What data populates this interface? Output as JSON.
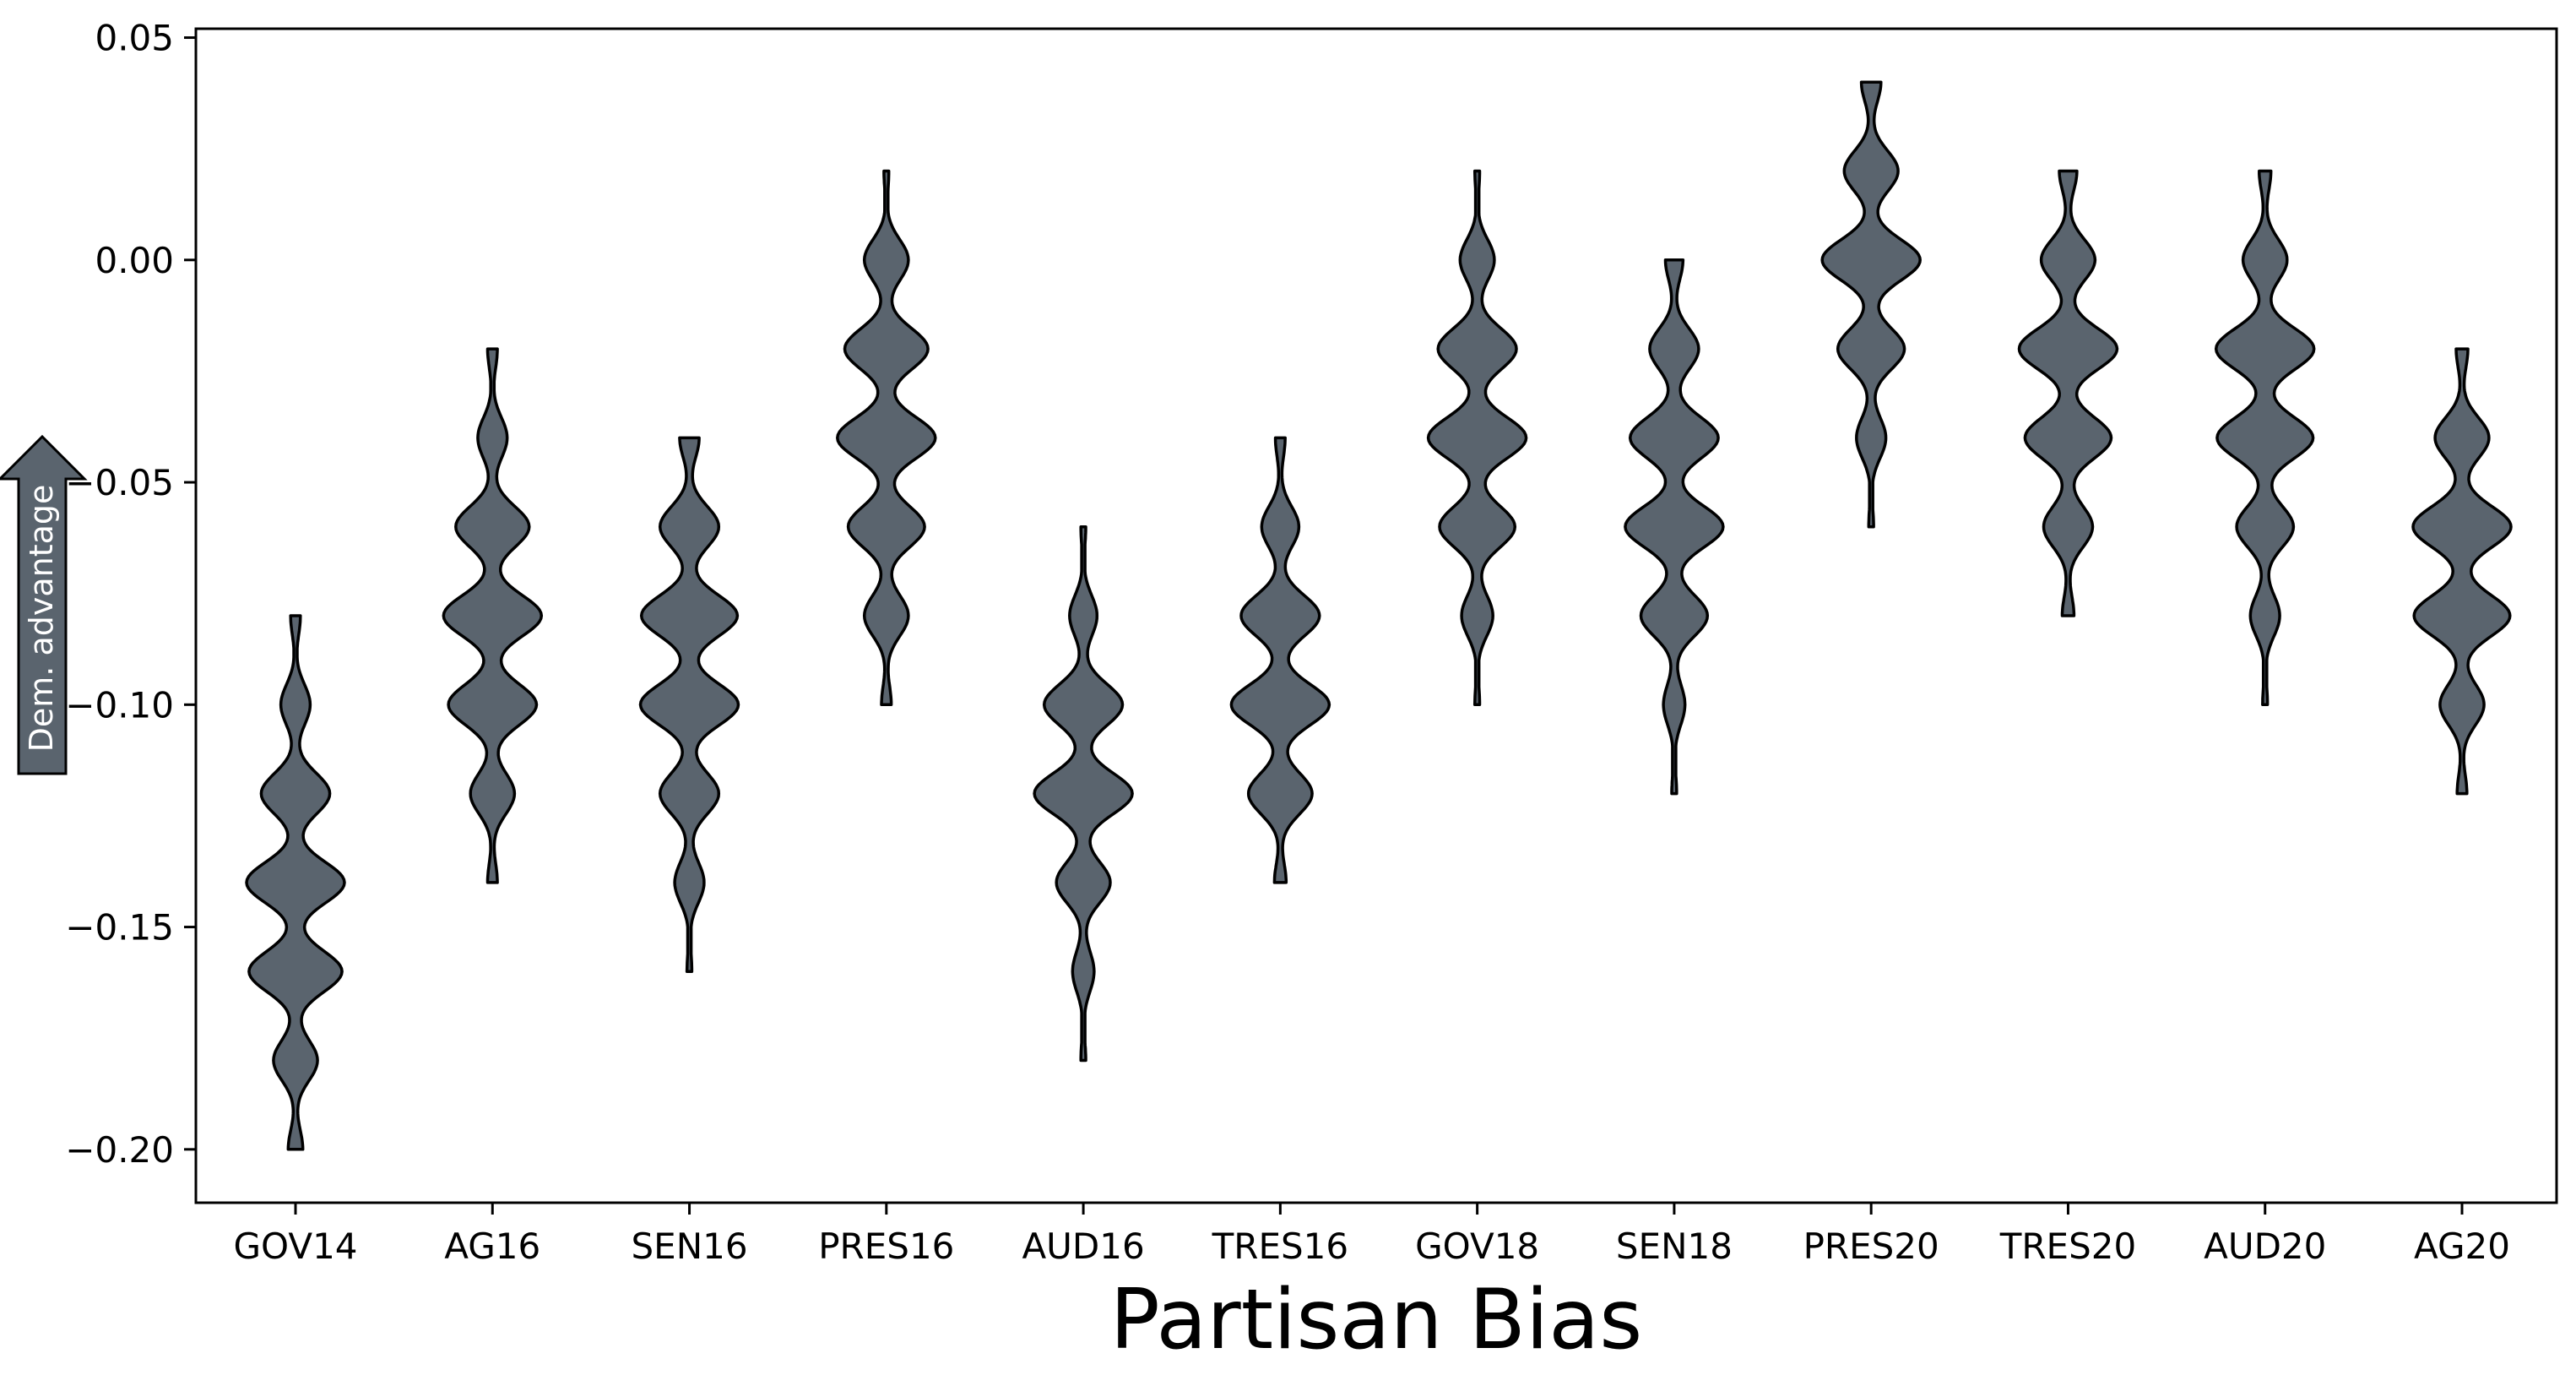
{
  "chart_data": {
    "type": "violin",
    "xlabel": "Partisan Bias",
    "ylabel": "",
    "ylim": [
      -0.212,
      0.052
    ],
    "yticks": [
      0.05,
      0.0,
      -0.05,
      -0.1,
      -0.15,
      -0.2
    ],
    "ytick_labels": [
      "0.05",
      "0.00",
      "−0.05",
      "−0.10",
      "−0.15",
      "−0.20"
    ],
    "violin_color": "#5a646e",
    "edge_color": "#000000",
    "annotation": {
      "text": "Dem. advantage",
      "direction": "up",
      "color": "#5a646e"
    },
    "categories": [
      "GOV14",
      "AG16",
      "SEN16",
      "PRES16",
      "AUD16",
      "TRES16",
      "GOV18",
      "SEN18",
      "PRES20",
      "TRES20",
      "AUD20",
      "AG20"
    ],
    "series": [
      {
        "category": "GOV14",
        "min": -0.2,
        "max": -0.08,
        "modes": [
          {
            "value": -0.08,
            "weight": 0.1
          },
          {
            "value": -0.1,
            "weight": 0.3
          },
          {
            "value": -0.12,
            "weight": 0.7
          },
          {
            "value": -0.14,
            "weight": 1.0
          },
          {
            "value": -0.16,
            "weight": 0.95
          },
          {
            "value": -0.18,
            "weight": 0.45
          },
          {
            "value": -0.2,
            "weight": 0.15
          }
        ]
      },
      {
        "category": "AG16",
        "min": -0.14,
        "max": -0.02,
        "modes": [
          {
            "value": -0.02,
            "weight": 0.1
          },
          {
            "value": -0.04,
            "weight": 0.3
          },
          {
            "value": -0.06,
            "weight": 0.75
          },
          {
            "value": -0.08,
            "weight": 1.0
          },
          {
            "value": -0.1,
            "weight": 0.9
          },
          {
            "value": -0.12,
            "weight": 0.45
          },
          {
            "value": -0.14,
            "weight": 0.1
          }
        ]
      },
      {
        "category": "SEN16",
        "min": -0.16,
        "max": -0.04,
        "modes": [
          {
            "value": -0.04,
            "weight": 0.2
          },
          {
            "value": -0.06,
            "weight": 0.6
          },
          {
            "value": -0.08,
            "weight": 0.98
          },
          {
            "value": -0.1,
            "weight": 1.0
          },
          {
            "value": -0.12,
            "weight": 0.6
          },
          {
            "value": -0.14,
            "weight": 0.3
          },
          {
            "value": -0.16,
            "weight": 0.05
          }
        ]
      },
      {
        "category": "PRES16",
        "min": -0.1,
        "max": 0.02,
        "modes": [
          {
            "value": 0.02,
            "weight": 0.05
          },
          {
            "value": 0.0,
            "weight": 0.45
          },
          {
            "value": -0.02,
            "weight": 0.85
          },
          {
            "value": -0.04,
            "weight": 1.0
          },
          {
            "value": -0.06,
            "weight": 0.78
          },
          {
            "value": -0.08,
            "weight": 0.45
          },
          {
            "value": -0.1,
            "weight": 0.1
          }
        ]
      },
      {
        "category": "AUD16",
        "min": -0.18,
        "max": -0.06,
        "modes": [
          {
            "value": -0.06,
            "weight": 0.05
          },
          {
            "value": -0.08,
            "weight": 0.28
          },
          {
            "value": -0.1,
            "weight": 0.8
          },
          {
            "value": -0.12,
            "weight": 1.0
          },
          {
            "value": -0.14,
            "weight": 0.55
          },
          {
            "value": -0.16,
            "weight": 0.22
          },
          {
            "value": -0.18,
            "weight": 0.05
          }
        ]
      },
      {
        "category": "TRES16",
        "min": -0.14,
        "max": -0.04,
        "modes": [
          {
            "value": -0.04,
            "weight": 0.1
          },
          {
            "value": -0.06,
            "weight": 0.38
          },
          {
            "value": -0.08,
            "weight": 0.8
          },
          {
            "value": -0.1,
            "weight": 1.0
          },
          {
            "value": -0.12,
            "weight": 0.65
          },
          {
            "value": -0.14,
            "weight": 0.12
          }
        ]
      },
      {
        "category": "GOV18",
        "min": -0.1,
        "max": 0.02,
        "modes": [
          {
            "value": 0.02,
            "weight": 0.05
          },
          {
            "value": 0.0,
            "weight": 0.35
          },
          {
            "value": -0.02,
            "weight": 0.8
          },
          {
            "value": -0.04,
            "weight": 1.0
          },
          {
            "value": -0.06,
            "weight": 0.77
          },
          {
            "value": -0.08,
            "weight": 0.32
          },
          {
            "value": -0.1,
            "weight": 0.05
          }
        ]
      },
      {
        "category": "SEN18",
        "min": -0.12,
        "max": 0.0,
        "modes": [
          {
            "value": 0.0,
            "weight": 0.18
          },
          {
            "value": -0.02,
            "weight": 0.5
          },
          {
            "value": -0.04,
            "weight": 0.9
          },
          {
            "value": -0.06,
            "weight": 1.0
          },
          {
            "value": -0.08,
            "weight": 0.68
          },
          {
            "value": -0.1,
            "weight": 0.22
          },
          {
            "value": -0.12,
            "weight": 0.05
          }
        ]
      },
      {
        "category": "PRES20",
        "min": -0.06,
        "max": 0.04,
        "modes": [
          {
            "value": 0.04,
            "weight": 0.2
          },
          {
            "value": 0.02,
            "weight": 0.55
          },
          {
            "value": 0.0,
            "weight": 1.0
          },
          {
            "value": -0.02,
            "weight": 0.68
          },
          {
            "value": -0.04,
            "weight": 0.3
          },
          {
            "value": -0.06,
            "weight": 0.05
          }
        ]
      },
      {
        "category": "TRES20",
        "min": -0.08,
        "max": 0.02,
        "modes": [
          {
            "value": 0.02,
            "weight": 0.18
          },
          {
            "value": 0.0,
            "weight": 0.55
          },
          {
            "value": -0.02,
            "weight": 1.0
          },
          {
            "value": -0.04,
            "weight": 0.88
          },
          {
            "value": -0.06,
            "weight": 0.5
          },
          {
            "value": -0.08,
            "weight": 0.12
          }
        ]
      },
      {
        "category": "AUD20",
        "min": -0.1,
        "max": 0.02,
        "modes": [
          {
            "value": 0.02,
            "weight": 0.12
          },
          {
            "value": 0.0,
            "weight": 0.45
          },
          {
            "value": -0.02,
            "weight": 1.0
          },
          {
            "value": -0.04,
            "weight": 0.98
          },
          {
            "value": -0.06,
            "weight": 0.58
          },
          {
            "value": -0.08,
            "weight": 0.3
          },
          {
            "value": -0.1,
            "weight": 0.05
          }
        ]
      },
      {
        "category": "AG20",
        "min": -0.12,
        "max": -0.02,
        "modes": [
          {
            "value": -0.02,
            "weight": 0.12
          },
          {
            "value": -0.04,
            "weight": 0.55
          },
          {
            "value": -0.06,
            "weight": 1.0
          },
          {
            "value": -0.08,
            "weight": 0.98
          },
          {
            "value": -0.1,
            "weight": 0.45
          },
          {
            "value": -0.12,
            "weight": 0.1
          }
        ]
      }
    ]
  }
}
